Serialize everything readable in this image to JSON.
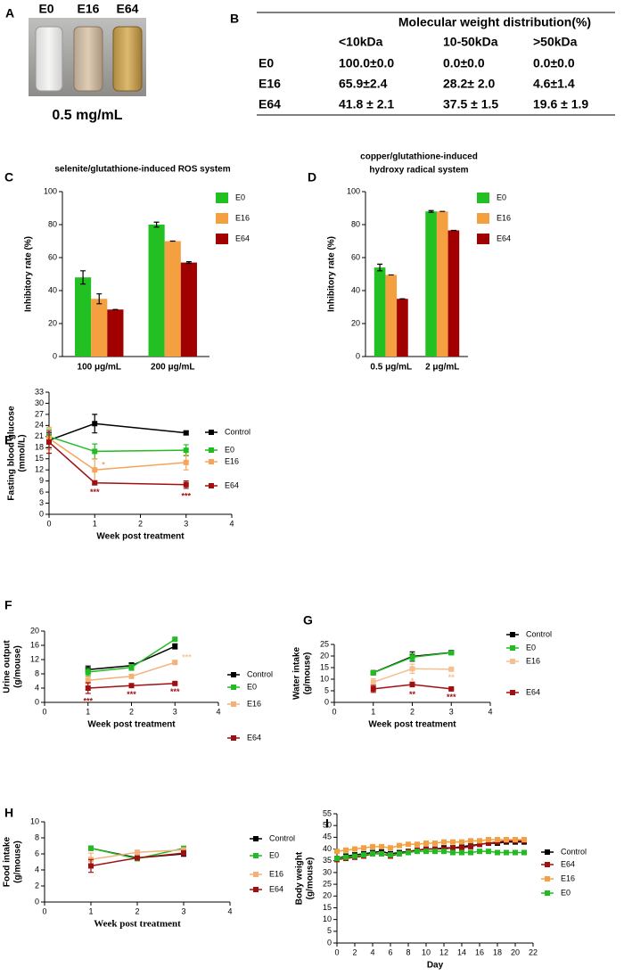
{
  "photo": {
    "label": "A",
    "samples": [
      "E0",
      "E16",
      "E64"
    ],
    "caption": "0.5 mg/mL"
  },
  "table": {
    "label": "B",
    "title": "Molecular weight distribution(%)",
    "columns": [
      "<10kDa",
      "10-50kDa",
      ">50kDa"
    ],
    "rows": [
      [
        "E0",
        "100.0±0.0",
        "0.0±0.0",
        "0.0±0.0"
      ],
      [
        "E16",
        "65.9±2.4",
        "28.2± 2.0",
        "4.6±1.4"
      ],
      [
        "E64",
        "41.8 ± 2.1",
        "37.5 ± 1.5",
        "19.6 ± 1.9"
      ]
    ]
  },
  "chart_data": [
    {
      "type": "bar",
      "label": "C",
      "title": [
        "selenite/glutathione-induced ROS system"
      ],
      "ylabel": [
        "Inhibitory rate (%)"
      ],
      "categories": [
        "100 μg/mL",
        "200 μg/mL"
      ],
      "series": [
        {
          "name": "E0",
          "color": "#22c022",
          "values": [
            48,
            80
          ],
          "errors": [
            4,
            1.5
          ]
        },
        {
          "name": "E16",
          "color": "#f5a040",
          "values": [
            35,
            70
          ],
          "errors": [
            3,
            0
          ]
        },
        {
          "name": "E64",
          "color": "#a00000",
          "values": [
            28.5,
            57
          ],
          "errors": [
            0,
            0.5
          ]
        }
      ],
      "ylim": [
        0,
        100
      ],
      "yticks": [
        0,
        20,
        40,
        60,
        80,
        100
      ]
    },
    {
      "type": "bar",
      "label": "D",
      "title": [
        "copper/glutathione-induced",
        "hydroxy radical system"
      ],
      "ylabel": [
        "Inhibitory rate (%)"
      ],
      "categories": [
        "0.5 μg/mL",
        "2 μg/mL"
      ],
      "series": [
        {
          "name": "E0",
          "color": "#22c022",
          "values": [
            54,
            88
          ],
          "errors": [
            2,
            0.5
          ]
        },
        {
          "name": "E16",
          "color": "#f5a040",
          "values": [
            49.5,
            88
          ],
          "errors": [
            0,
            0
          ]
        },
        {
          "name": "E64",
          "color": "#a00000",
          "values": [
            35,
            76.5
          ],
          "errors": [
            0,
            0
          ]
        }
      ],
      "ylim": [
        0,
        100
      ],
      "yticks": [
        0,
        20,
        40,
        60,
        80,
        100
      ]
    },
    {
      "type": "line",
      "label": "E",
      "ylabel": [
        "Fasting blood glucose",
        "(mmol/L)"
      ],
      "xlabel": "Week post treatment",
      "x": [
        0,
        1,
        3
      ],
      "series": [
        {
          "name": "Control",
          "color": "#000000",
          "values": [
            20,
            24.5,
            22
          ],
          "errors": [
            2,
            2.5,
            0.5
          ]
        },
        {
          "name": "E0",
          "color": "#22bb22",
          "values": [
            21,
            17,
            17.3
          ],
          "errors": [
            2,
            2,
            1.5
          ]
        },
        {
          "name": "E16",
          "color": "#f5a55a",
          "values": [
            20.5,
            12,
            14
          ],
          "errors": [
            3,
            3,
            2
          ]
        },
        {
          "name": "E64",
          "color": "#a01010",
          "values": [
            19.5,
            8.5,
            8
          ],
          "errors": [
            3,
            0.5,
            1
          ]
        }
      ],
      "annotations": [
        {
          "text": "*",
          "series": 2,
          "index": 1,
          "color": "#f5a55a",
          "position": "right"
        },
        {
          "text": "***",
          "series": 3,
          "index": 1,
          "color": "#a01010",
          "position": "below"
        },
        {
          "text": "***",
          "series": 3,
          "index": 2,
          "color": "#a01010",
          "position": "below"
        }
      ],
      "xlim": [
        0,
        4
      ],
      "xticks": [
        0,
        1,
        2,
        3,
        4
      ],
      "ylim": [
        0,
        33
      ],
      "yticks": [
        0,
        3,
        6,
        9,
        12,
        15,
        18,
        21,
        24,
        27,
        30,
        33
      ]
    },
    {
      "type": "line",
      "label": "F",
      "ylabel": [
        "Urine output",
        "(g/mouse)"
      ],
      "xlabel": "Week post treatment",
      "x": [
        1,
        2,
        3
      ],
      "series": [
        {
          "name": "Control",
          "color": "#000000",
          "values": [
            9.2,
            10.3,
            15.7
          ],
          "errors": [
            1,
            0.8,
            0.7
          ]
        },
        {
          "name": "E0",
          "color": "#22bb22",
          "values": [
            8.5,
            9.8,
            17.7
          ],
          "errors": [
            1,
            0.8,
            0.3
          ]
        },
        {
          "name": "E16",
          "color": "#f5b07a",
          "values": [
            6.2,
            7.3,
            11.2
          ],
          "errors": [
            1,
            0.3,
            0.3
          ]
        },
        {
          "name": "E64",
          "color": "#a01010",
          "values": [
            4,
            4.7,
            5.3
          ],
          "errors": [
            1.5,
            0.3,
            0.2
          ]
        }
      ],
      "annotations": [
        {
          "text": "***",
          "series": 3,
          "index": 0,
          "color": "#a01010",
          "position": "below"
        },
        {
          "text": "***",
          "series": 3,
          "index": 1,
          "color": "#a01010",
          "position": "below"
        },
        {
          "text": "***",
          "series": 3,
          "index": 2,
          "color": "#a01010",
          "position": "below"
        },
        {
          "text": "***",
          "series": 2,
          "index": 2,
          "color": "#f5c9a0",
          "position": "right"
        }
      ],
      "xlim": [
        0,
        4
      ],
      "xticks": [
        0,
        1,
        2,
        3,
        4
      ],
      "ylim": [
        0,
        20
      ],
      "yticks": [
        0,
        4,
        8,
        12,
        16,
        20
      ]
    },
    {
      "type": "line",
      "label": "G",
      "ylabel": [
        "Water intake",
        "(g/mouse)"
      ],
      "xlabel": "Week post treatment",
      "x": [
        1,
        2,
        3
      ],
      "series": [
        {
          "name": "Control",
          "color": "#000000",
          "values": [
            12.8,
            19.8,
            21.5
          ],
          "errors": [
            0.5,
            2,
            0.5
          ]
        },
        {
          "name": "E0",
          "color": "#22bb22",
          "values": [
            12.7,
            19.5,
            21.4
          ],
          "errors": [
            0.5,
            1.5,
            0.4
          ]
        },
        {
          "name": "E16",
          "color": "#f5c090",
          "values": [
            8.7,
            14.5,
            14.3
          ],
          "errors": [
            1.5,
            2,
            0.3
          ]
        },
        {
          "name": "E64",
          "color": "#a01010",
          "values": [
            5.8,
            7.7,
            5.8
          ],
          "errors": [
            1.5,
            1,
            0.3
          ]
        }
      ],
      "annotations": [
        {
          "text": "*",
          "series": 2,
          "index": 1,
          "color": "#f5c090",
          "position": "below"
        },
        {
          "text": "**",
          "series": 2,
          "index": 2,
          "color": "#f5c090",
          "position": "below"
        },
        {
          "text": "**",
          "series": 3,
          "index": 1,
          "color": "#a01010",
          "position": "below"
        },
        {
          "text": "***",
          "series": 3,
          "index": 2,
          "color": "#a01010",
          "position": "below"
        }
      ],
      "xlim": [
        0,
        4
      ],
      "xticks": [
        0,
        1,
        2,
        3,
        4
      ],
      "ylim": [
        0,
        25
      ],
      "yticks": [
        0,
        5,
        10,
        15,
        20,
        25
      ]
    },
    {
      "type": "line",
      "label": "H",
      "ylabel": [
        "Food intake",
        "(g/mouse)"
      ],
      "xlabel": "Week post treatment",
      "x": [
        1,
        2,
        3
      ],
      "series": [
        {
          "name": "Control",
          "color": "#000000",
          "values": [
            6.7,
            5.5,
            6
          ],
          "errors": [
            0.2,
            0.2,
            0.3
          ]
        },
        {
          "name": "E0",
          "color": "#22bb22",
          "values": [
            6.7,
            5.4,
            6.7
          ],
          "errors": [
            0.2,
            0.2,
            0.2
          ]
        },
        {
          "name": "E16",
          "color": "#f5b07a",
          "values": [
            5.3,
            6.2,
            6.5
          ],
          "errors": [
            0.8,
            0.2,
            0.2
          ]
        },
        {
          "name": "E64",
          "color": "#a01010",
          "values": [
            4.5,
            5.5,
            6.1
          ],
          "errors": [
            0.8,
            0.2,
            0.3
          ]
        }
      ],
      "annotations": [],
      "xlim": [
        0,
        4
      ],
      "xticks": [
        0,
        1,
        2,
        3,
        4
      ],
      "ylim": [
        0,
        10
      ],
      "yticks": [
        0,
        2,
        4,
        6,
        8,
        10
      ]
    },
    {
      "type": "line",
      "label": "I",
      "ylabel": [
        "Body weight",
        "(g/mouse)"
      ],
      "xlabel": "Day",
      "x": [
        0,
        1,
        2,
        3,
        4,
        5,
        6,
        7,
        8,
        9,
        10,
        11,
        12,
        13,
        14,
        15,
        16,
        17,
        18,
        19,
        20,
        21
      ],
      "series": [
        {
          "name": "Control",
          "color": "#000000",
          "values": [
            36,
            37,
            37.5,
            38,
            38.5,
            39,
            38,
            38.5,
            39,
            39.5,
            40,
            40,
            40.5,
            40.5,
            41,
            41.5,
            42,
            42.5,
            42.5,
            43,
            43,
            43
          ]
        },
        {
          "name": "E64",
          "color": "#a01010",
          "values": [
            35.5,
            36,
            36.5,
            37,
            38,
            38,
            37,
            38,
            39,
            39.5,
            40,
            40,
            40,
            40.5,
            40.5,
            41,
            42,
            42.5,
            43,
            43.5,
            43.5,
            43.5
          ]
        },
        {
          "name": "E16",
          "color": "#f5a040",
          "values": [
            39,
            39.5,
            40,
            40.5,
            41,
            41,
            40.5,
            41.5,
            42,
            42,
            42.5,
            42.5,
            43,
            43,
            43,
            43.5,
            43.5,
            44,
            44,
            44,
            44,
            44
          ]
        },
        {
          "name": "E0",
          "color": "#22bb22",
          "values": [
            36,
            36.5,
            37,
            37.5,
            38,
            38,
            37.5,
            38,
            38.5,
            39,
            39,
            39,
            39,
            38.5,
            38.5,
            38.5,
            39,
            39,
            38.5,
            38.5,
            38.5,
            38.5
          ]
        }
      ],
      "annotations": [],
      "xlim": [
        0,
        22
      ],
      "xticks": [
        0,
        2,
        4,
        6,
        8,
        10,
        12,
        14,
        16,
        18,
        20,
        22
      ],
      "ylim": [
        0,
        55
      ],
      "yticks": [
        0,
        5,
        10,
        15,
        20,
        25,
        30,
        35,
        40,
        45,
        50,
        55
      ]
    }
  ]
}
